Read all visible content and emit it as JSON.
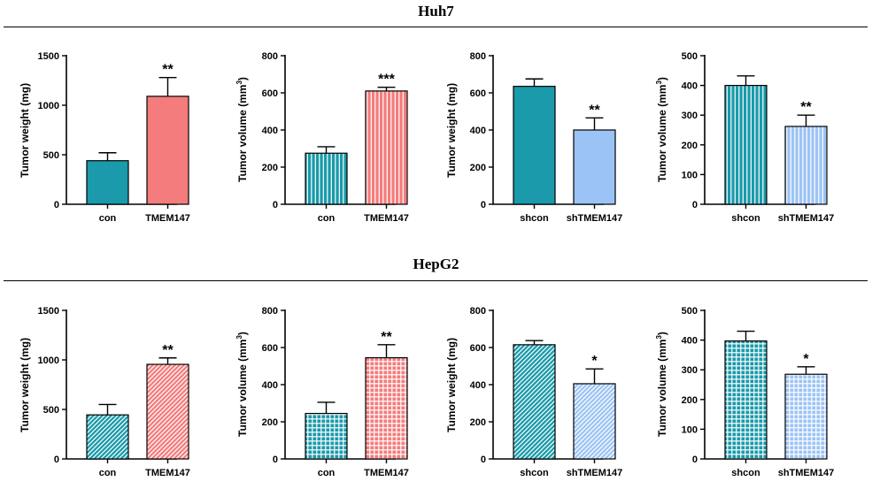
{
  "sections": [
    {
      "title": "Huh7",
      "charts": [
        {
          "ylabel": "Tumor weight (mg)",
          "unit_sup": "",
          "ylabel_tail": ""
        },
        {
          "ylabel": "Tumor volume (mm",
          "unit_sup": "3",
          "ylabel_tail": ")"
        },
        {
          "ylabel": "Tumor weight (mg)",
          "unit_sup": "",
          "ylabel_tail": ""
        },
        {
          "ylabel": "Tumor volume (mm",
          "unit_sup": "3",
          "ylabel_tail": ")"
        }
      ]
    },
    {
      "title": "HepG2",
      "charts": [
        {
          "ylabel": "Tumor weight (mg)",
          "unit_sup": "",
          "ylabel_tail": ""
        },
        {
          "ylabel": "Tumor volume (mm",
          "unit_sup": "3",
          "ylabel_tail": ")"
        },
        {
          "ylabel": "Tumor weight (mg)",
          "unit_sup": "",
          "ylabel_tail": ""
        },
        {
          "ylabel": "Tumor volume (mm",
          "unit_sup": "3",
          "ylabel_tail": ")"
        }
      ]
    }
  ],
  "colors": {
    "teal": "#1a9aaa",
    "salmon": "#f47c7c",
    "lightblue": "#9cc3f5",
    "axis": "#000000"
  },
  "chart_data": [
    {
      "type": "bar",
      "section": "Huh7",
      "ylabel": "Tumor weight (mg)",
      "ylim": [
        0,
        1500
      ],
      "yticks": [
        0,
        500,
        1000,
        1500
      ],
      "categories": [
        "con",
        "TMEM147"
      ],
      "values": [
        440,
        1090
      ],
      "errors": [
        80,
        190
      ],
      "annotations": [
        "",
        "**"
      ],
      "fills": [
        "teal:solid",
        "salmon:solid"
      ]
    },
    {
      "type": "bar",
      "section": "Huh7",
      "ylabel": "Tumor volume (mm3)",
      "ylim": [
        0,
        800
      ],
      "yticks": [
        0,
        200,
        400,
        600,
        800
      ],
      "categories": [
        "con",
        "TMEM147"
      ],
      "values": [
        275,
        610
      ],
      "errors": [
        35,
        20
      ],
      "annotations": [
        "",
        "***"
      ],
      "fills": [
        "teal:vertical",
        "salmon:vertical"
      ]
    },
    {
      "type": "bar",
      "section": "Huh7",
      "ylabel": "Tumor weight (mg)",
      "ylim": [
        0,
        800
      ],
      "yticks": [
        0,
        200,
        400,
        600,
        800
      ],
      "categories": [
        "shcon",
        "shTMEM147"
      ],
      "values": [
        635,
        400
      ],
      "errors": [
        40,
        65
      ],
      "annotations": [
        "",
        "**"
      ],
      "fills": [
        "teal:solid",
        "lightblue:solid"
      ]
    },
    {
      "type": "bar",
      "section": "Huh7",
      "ylabel": "Tumor volume (mm3)",
      "ylim": [
        0,
        500
      ],
      "yticks": [
        0,
        100,
        200,
        300,
        400,
        500
      ],
      "categories": [
        "shcon",
        "shTMEM147"
      ],
      "values": [
        400,
        262
      ],
      "errors": [
        32,
        38
      ],
      "annotations": [
        "",
        "**"
      ],
      "fills": [
        "teal:vertical",
        "lightblue:vertical"
      ]
    },
    {
      "type": "bar",
      "section": "HepG2",
      "ylabel": "Tumor weight (mg)",
      "ylim": [
        0,
        1500
      ],
      "yticks": [
        0,
        500,
        1000,
        1500
      ],
      "categories": [
        "con",
        "TMEM147"
      ],
      "values": [
        445,
        955
      ],
      "errors": [
        105,
        65
      ],
      "annotations": [
        "",
        "**"
      ],
      "fills": [
        "teal:diagonal",
        "salmon:diagonal"
      ]
    },
    {
      "type": "bar",
      "section": "HepG2",
      "ylabel": "Tumor volume (mm3)",
      "ylim": [
        0,
        800
      ],
      "yticks": [
        0,
        200,
        400,
        600,
        800
      ],
      "categories": [
        "con",
        "TMEM147"
      ],
      "values": [
        245,
        545
      ],
      "errors": [
        60,
        70
      ],
      "annotations": [
        "",
        "**"
      ],
      "fills": [
        "teal:grid",
        "salmon:grid"
      ]
    },
    {
      "type": "bar",
      "section": "HepG2",
      "ylabel": "Tumor weight (mg)",
      "ylim": [
        0,
        800
      ],
      "yticks": [
        0,
        200,
        400,
        600,
        800
      ],
      "categories": [
        "shcon",
        "shTMEM147"
      ],
      "values": [
        615,
        405
      ],
      "errors": [
        22,
        80
      ],
      "annotations": [
        "",
        "*"
      ],
      "fills": [
        "teal:diagonal",
        "lightblue:diagonal"
      ]
    },
    {
      "type": "bar",
      "section": "HepG2",
      "ylabel": "Tumor volume (mm3)",
      "ylim": [
        0,
        500
      ],
      "yticks": [
        0,
        100,
        200,
        300,
        400,
        500
      ],
      "categories": [
        "shcon",
        "shTMEM147"
      ],
      "values": [
        397,
        285
      ],
      "errors": [
        33,
        25
      ],
      "annotations": [
        "",
        "*"
      ],
      "fills": [
        "teal:grid",
        "lightblue:grid"
      ]
    }
  ]
}
